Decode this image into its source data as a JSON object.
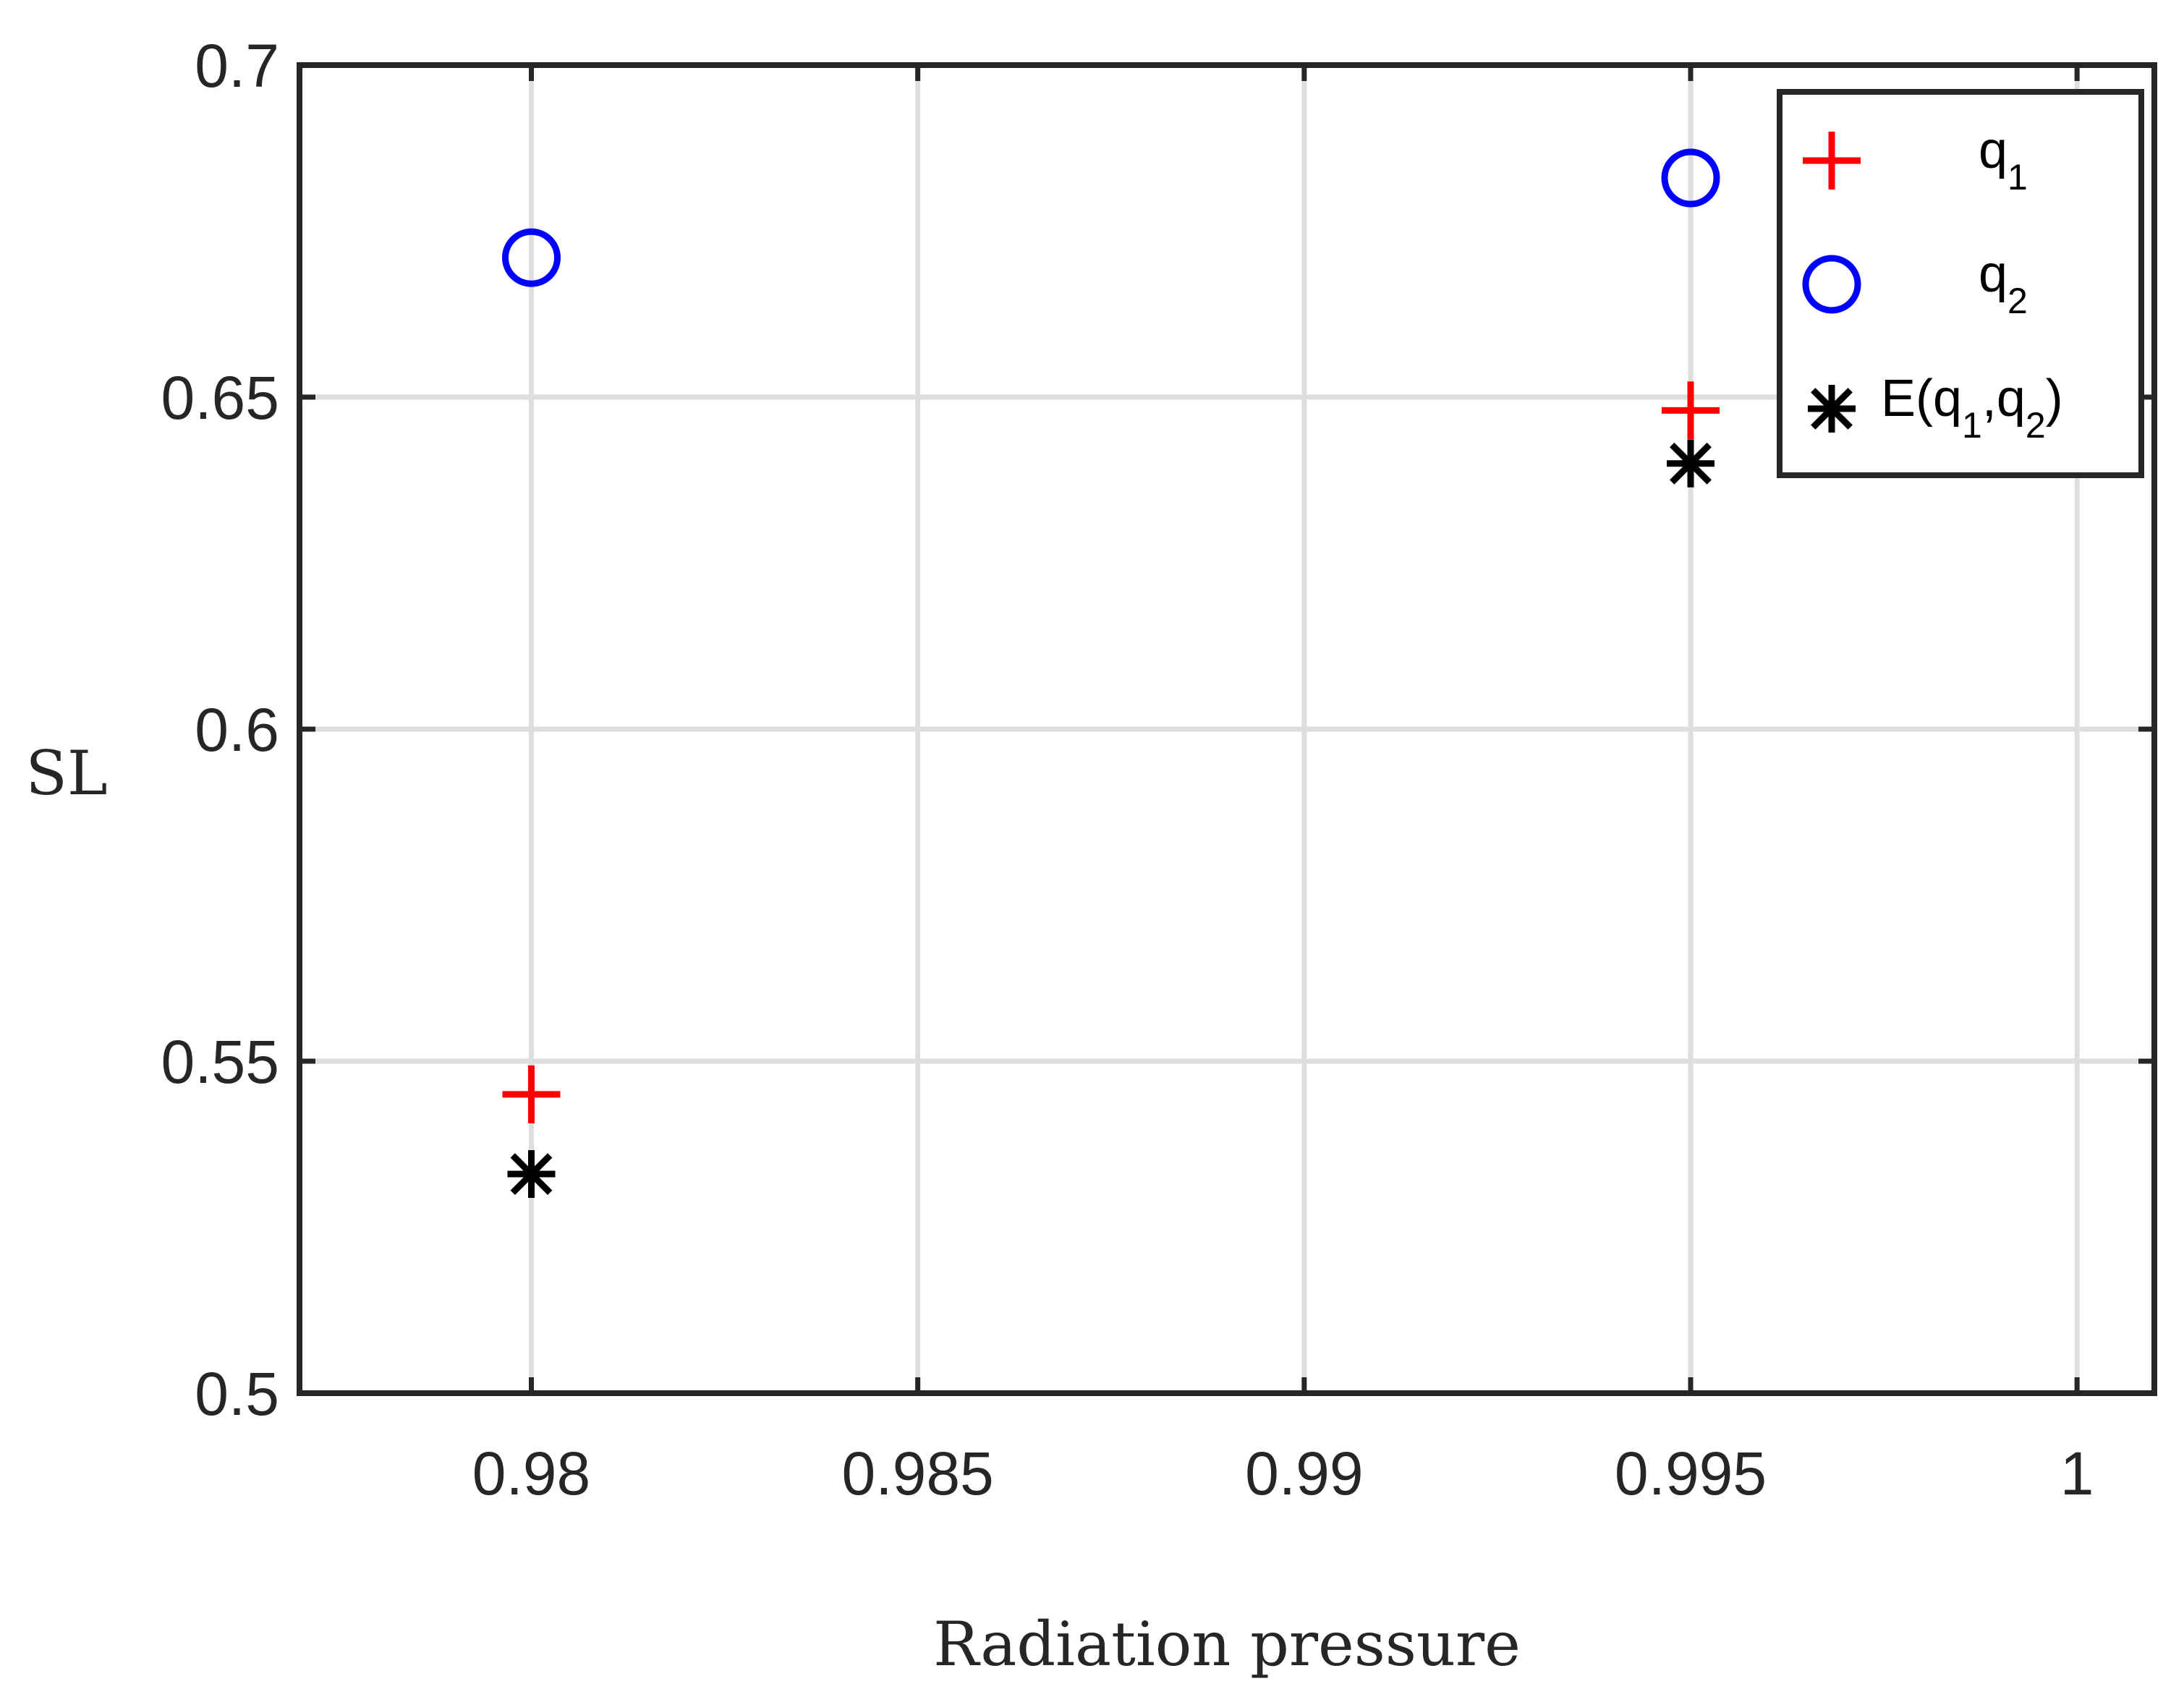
{
  "chart_data": {
    "type": "scatter",
    "title": "",
    "xlabel": "Radiation pressure",
    "ylabel": "SL",
    "xlim": [
      0.977,
      1.001
    ],
    "ylim": [
      0.5,
      0.7
    ],
    "grid": true,
    "legend_position": "top-right",
    "x_ticks": [
      0.98,
      0.985,
      0.99,
      0.995,
      1.0
    ],
    "x_tick_labels": [
      "0.98",
      "0.985",
      "0.99",
      "0.995",
      "1"
    ],
    "y_ticks": [
      0.5,
      0.55,
      0.6,
      0.65,
      0.7
    ],
    "y_tick_labels": [
      "0.5",
      "0.55",
      "0.6",
      "0.65",
      "0.7"
    ],
    "series": [
      {
        "name": "q1",
        "marker": "plus",
        "color": "#ff0000",
        "x": [
          0.98,
          0.995
        ],
        "y": [
          0.545,
          0.648
        ]
      },
      {
        "name": "q2",
        "marker": "circle",
        "color": "#0000ff",
        "x": [
          0.98,
          0.995
        ],
        "y": [
          0.671,
          0.683
        ]
      },
      {
        "name": "E(q1,q2)",
        "marker": "asterisk",
        "color": "#000000",
        "x": [
          0.98,
          0.995
        ],
        "y": [
          0.533,
          0.64
        ]
      }
    ],
    "legend": [
      {
        "main": "q",
        "sub": "1"
      },
      {
        "main": "q",
        "sub": "2"
      },
      {
        "parts": [
          {
            "t": "E(q",
            "sub": false
          },
          {
            "t": "1",
            "sub": true
          },
          {
            "t": ",q",
            "sub": false
          },
          {
            "t": "2",
            "sub": true
          },
          {
            "t": ")",
            "sub": false
          }
        ]
      }
    ]
  }
}
